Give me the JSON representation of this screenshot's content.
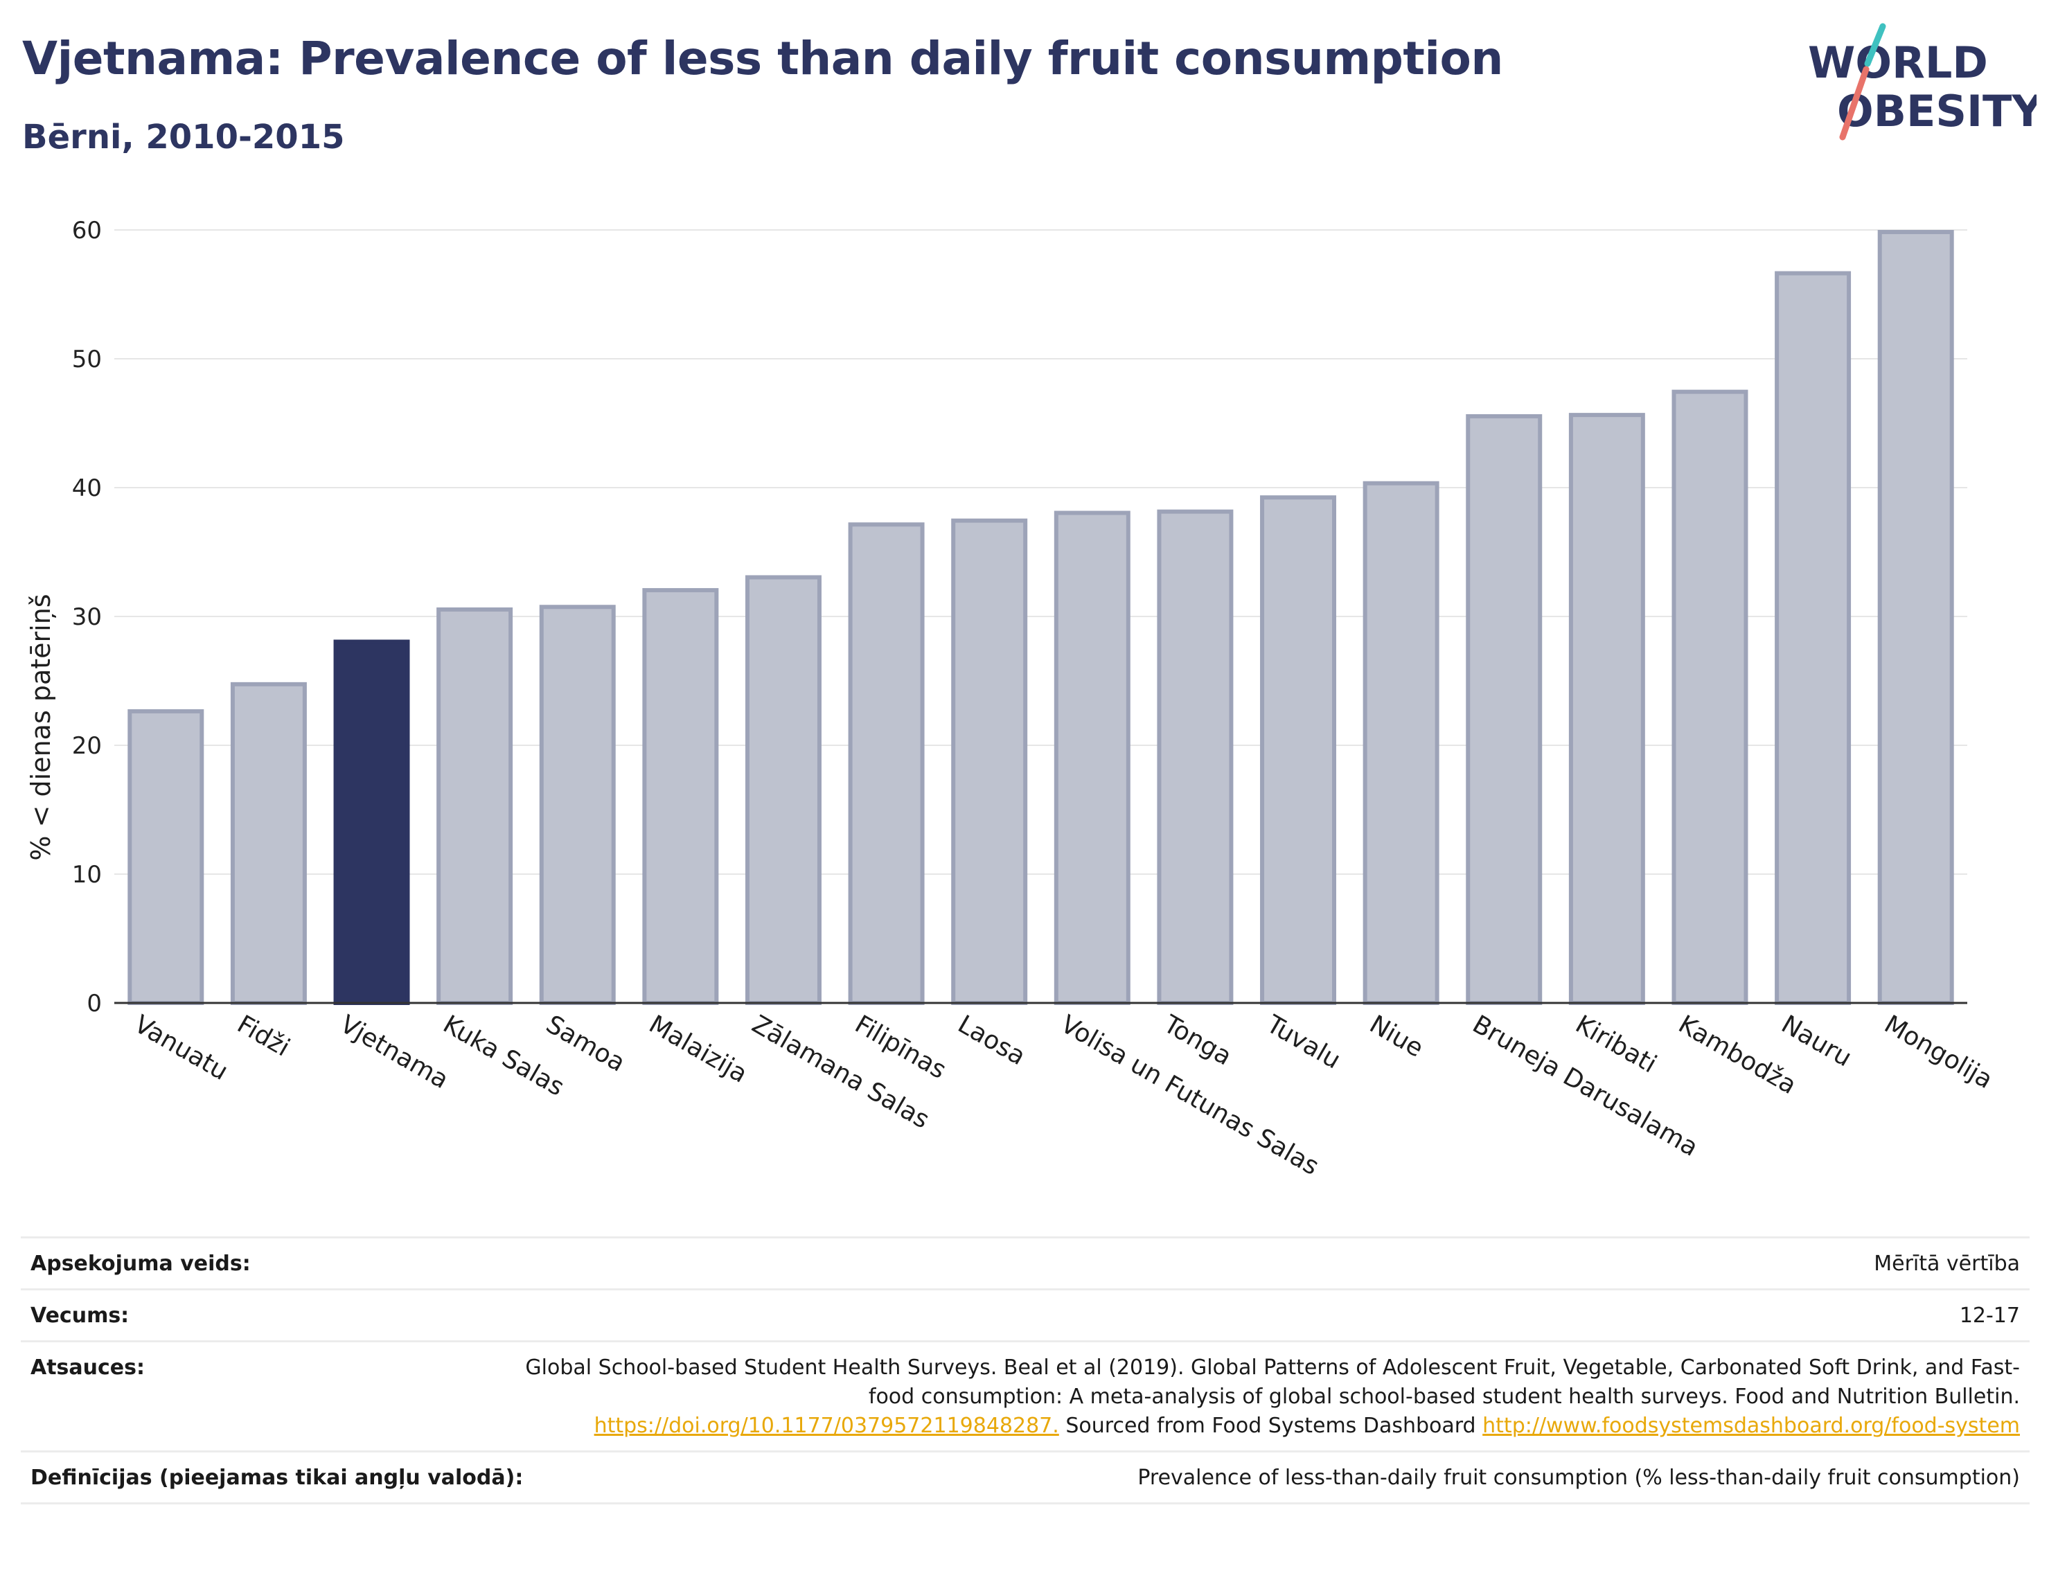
{
  "header": {
    "title": "Vjetnama: Prevalence of less than daily fruit consumption",
    "subtitle": "Bērni, 2010-2015"
  },
  "logo": {
    "line1": "WORLD",
    "line2": "OBESITY",
    "colors": {
      "text": "#2d3561",
      "slash_teal": "#3fc1c0",
      "slash_coral": "#e8736a"
    }
  },
  "chart_data": {
    "type": "bar",
    "title": "",
    "xlabel": "",
    "ylabel": "% < dienas patēriņš",
    "ylim": [
      0,
      60
    ],
    "yticks": [
      0,
      10,
      20,
      30,
      40,
      50,
      60
    ],
    "grid": true,
    "categories": [
      "Vanuatu",
      "Fidži",
      "Vjetnama",
      "Kuka Salas",
      "Samoa",
      "Malaizija",
      "Zālamana Salas",
      "Filipīnas",
      "Laosa",
      "Volisa un Futunas Salas",
      "Tonga",
      "Tuvalu",
      "Niue",
      "Bruneja Darusalama",
      "Kiribati",
      "Kambodža",
      "Nauru",
      "Mongolija"
    ],
    "values": [
      22.8,
      24.9,
      28.2,
      30.7,
      30.9,
      32.2,
      33.2,
      37.3,
      37.6,
      38.2,
      38.3,
      39.4,
      40.5,
      45.7,
      45.8,
      47.6,
      56.8,
      60.0
    ],
    "highlight": "Vjetnama",
    "colors": {
      "bar": "#bec2cf",
      "bar_edge": "#9da3b8",
      "highlight": "#2d3561",
      "grid": "#e6e6e6",
      "axis": "#333333"
    }
  },
  "details": {
    "survey_label": "Apsekojuma veids:",
    "survey_value": "Mērītā vērtība",
    "age_label": "Vecums:",
    "age_value": "12-17",
    "refs_label": "Atsauces:",
    "refs_text": "Global School-based Student Health Surveys. Beal et al (2019). Global Patterns of Adolescent Fruit, Vegetable, Carbonated Soft Drink, and Fast-food consumption: A meta-analysis of global school-based student health surveys. Food and Nutrition Bulletin.",
    "refs_link1": "https://doi.org/10.1177/0379572119848287.",
    "refs_mid": "Sourced from Food Systems Dashboard",
    "refs_link2": "http://www.foodsystemsdashboard.org/food-system",
    "def_label": "Definīcijas (pieejamas tikai angļu valodā):",
    "def_value": "Prevalence of less-than-daily fruit consumption (% less-than-daily fruit consumption)"
  }
}
